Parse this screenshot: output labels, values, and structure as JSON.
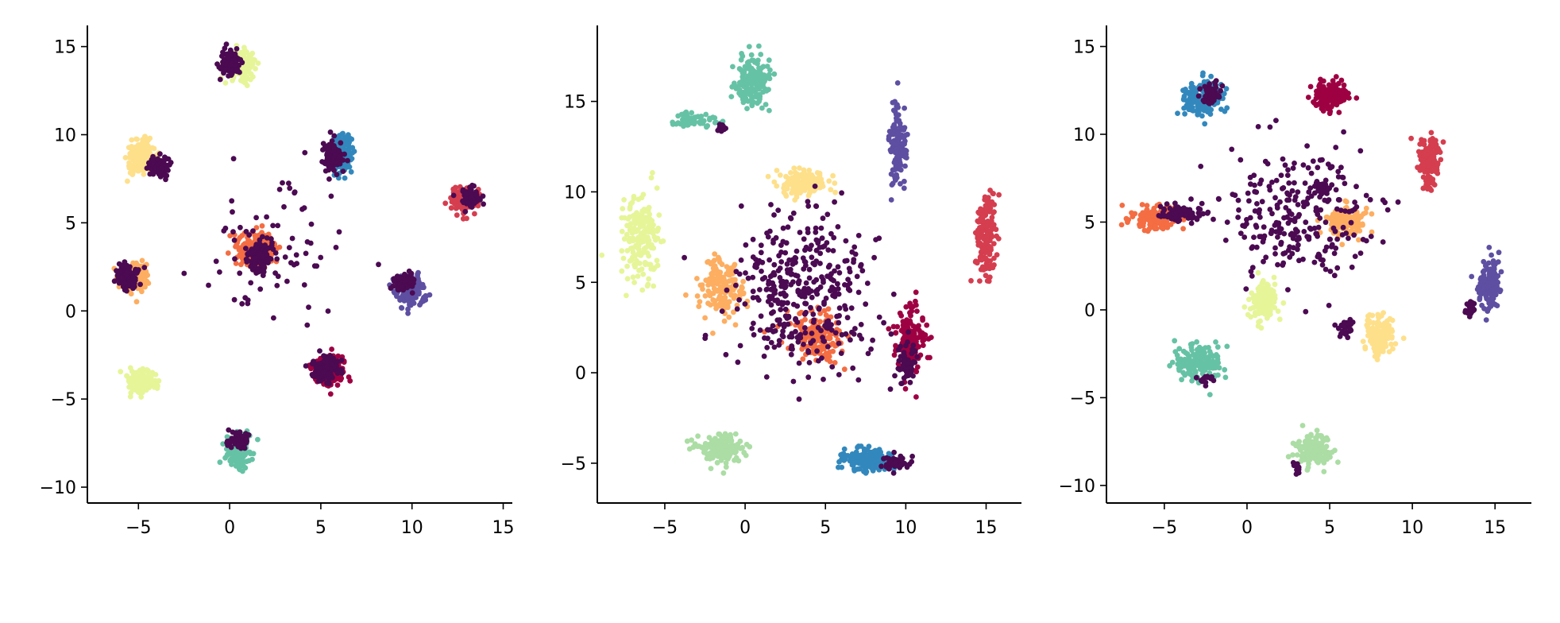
{
  "figure": {
    "background": "#ffffff"
  },
  "palette": {
    "overlay": "#4b0a52",
    "spectral": [
      "#9e0142",
      "#d53e4f",
      "#f46d43",
      "#fdae61",
      "#fee08b",
      "#e6f598",
      "#abdda4",
      "#66c2a5",
      "#3288bd",
      "#5e4fa2"
    ]
  },
  "chart_data": [
    {
      "type": "scatter",
      "title": "",
      "xlabel": "",
      "ylabel": "",
      "xlim": [
        -7.8,
        15.5
      ],
      "ylim": [
        -10.9,
        16.2
      ],
      "xticks": [
        -5,
        0,
        5,
        10,
        15
      ],
      "yticks": [
        -10,
        -5,
        0,
        5,
        10,
        15
      ],
      "xtick_labels": [
        "−5",
        "0",
        "5",
        "10",
        "15"
      ],
      "ytick_labels": [
        "−10",
        "−5",
        "0",
        "5",
        "10",
        "15"
      ],
      "grid": false,
      "clusters": [
        {
          "color": "#e6f598",
          "cx": 0.6,
          "cy": 14.0,
          "sx": 0.75,
          "sy": 0.7,
          "n": 170
        },
        {
          "color": "#fee08b",
          "cx": -4.8,
          "cy": 8.7,
          "sx": 0.75,
          "sy": 0.85,
          "n": 160
        },
        {
          "color": "#3288bd",
          "cx": 6.2,
          "cy": 8.9,
          "sx": 0.45,
          "sy": 0.95,
          "n": 150
        },
        {
          "color": "#d53e4f",
          "cx": 12.8,
          "cy": 6.3,
          "sx": 0.7,
          "sy": 0.65,
          "n": 140
        },
        {
          "color": "#fdae61",
          "cx": -5.2,
          "cy": 2.0,
          "sx": 0.7,
          "sy": 0.8,
          "n": 150
        },
        {
          "color": "#f46d43",
          "cx": 1.5,
          "cy": 3.5,
          "sx": 0.9,
          "sy": 0.9,
          "n": 190
        },
        {
          "color": "#5e4fa2",
          "cx": 9.9,
          "cy": 1.1,
          "sx": 0.75,
          "sy": 0.75,
          "n": 150
        },
        {
          "color": "#9e0142",
          "cx": 5.4,
          "cy": -3.3,
          "sx": 0.9,
          "sy": 0.8,
          "n": 170
        },
        {
          "color": "#e6f598",
          "cx": -4.8,
          "cy": -4.0,
          "sx": 0.8,
          "sy": 0.6,
          "n": 150
        },
        {
          "color": "#66c2a5",
          "cx": 0.5,
          "cy": -8.0,
          "sx": 0.6,
          "sy": 0.9,
          "n": 160
        }
      ],
      "overlay": [
        {
          "cx": 0.0,
          "cy": 14.1,
          "sx": 0.5,
          "sy": 0.65,
          "n": 110
        },
        {
          "cx": -3.9,
          "cy": 8.2,
          "sx": 0.5,
          "sy": 0.5,
          "n": 90
        },
        {
          "cx": 5.6,
          "cy": 8.8,
          "sx": 0.45,
          "sy": 0.75,
          "n": 100
        },
        {
          "cx": 13.2,
          "cy": 6.4,
          "sx": 0.45,
          "sy": 0.55,
          "n": 70
        },
        {
          "cx": -5.6,
          "cy": 2.0,
          "sx": 0.55,
          "sy": 0.6,
          "n": 110
        },
        {
          "cx": 1.6,
          "cy": 3.0,
          "sx": 0.55,
          "sy": 0.8,
          "n": 130
        },
        {
          "cx": 9.6,
          "cy": 1.6,
          "sx": 0.5,
          "sy": 0.4,
          "n": 100
        },
        {
          "cx": 5.2,
          "cy": -3.3,
          "sx": 0.7,
          "sy": 0.6,
          "n": 120
        },
        {
          "cx": 0.5,
          "cy": -7.3,
          "sx": 0.5,
          "sy": 0.5,
          "n": 60
        },
        {
          "cx": 2.5,
          "cy": 3.5,
          "sx": 3.5,
          "sy": 4.0,
          "n": 80
        }
      ]
    },
    {
      "type": "scatter",
      "title": "",
      "xlabel": "",
      "ylabel": "",
      "xlim": [
        -9.2,
        17.2
      ],
      "ylim": [
        -7.2,
        19.2
      ],
      "xticks": [
        -5,
        0,
        5,
        10,
        15
      ],
      "yticks": [
        -5,
        0,
        5,
        10,
        15
      ],
      "xtick_labels": [
        "−5",
        "0",
        "5",
        "10",
        "15"
      ],
      "ytick_labels": [
        "−5",
        "0",
        "5",
        "10",
        "15"
      ],
      "grid": false,
      "clusters": [
        {
          "color": "#66c2a5",
          "cx": 0.5,
          "cy": 16.0,
          "sx": 1.0,
          "sy": 1.4,
          "n": 160
        },
        {
          "color": "#66c2a5",
          "cx": -3.0,
          "cy": 14.0,
          "sx": 1.2,
          "sy": 0.4,
          "n": 60
        },
        {
          "color": "#5e4fa2",
          "cx": 9.5,
          "cy": 12.5,
          "sx": 0.45,
          "sy": 2.0,
          "n": 140
        },
        {
          "color": "#d53e4f",
          "cx": 15.0,
          "cy": 7.5,
          "sx": 0.6,
          "sy": 2.2,
          "n": 170
        },
        {
          "color": "#e6f598",
          "cx": -6.5,
          "cy": 7.5,
          "sx": 1.0,
          "sy": 2.0,
          "n": 190
        },
        {
          "color": "#fee08b",
          "cx": 3.5,
          "cy": 10.5,
          "sx": 1.5,
          "sy": 0.6,
          "n": 140
        },
        {
          "color": "#fdae61",
          "cx": -1.5,
          "cy": 4.5,
          "sx": 1.2,
          "sy": 1.5,
          "n": 160
        },
        {
          "color": "#f46d43",
          "cx": 4.5,
          "cy": 2.0,
          "sx": 1.5,
          "sy": 1.2,
          "n": 150
        },
        {
          "color": "#9e0142",
          "cx": 10.3,
          "cy": 2.0,
          "sx": 0.8,
          "sy": 1.8,
          "n": 170
        },
        {
          "color": "#abdda4",
          "cx": -1.5,
          "cy": -4.2,
          "sx": 1.5,
          "sy": 0.8,
          "n": 140
        },
        {
          "color": "#3288bd",
          "cx": 7.5,
          "cy": -4.8,
          "sx": 1.5,
          "sy": 0.6,
          "n": 170
        }
      ],
      "overlay": [
        {
          "cx": 3.5,
          "cy": 4.5,
          "sx": 3.8,
          "sy": 4.2,
          "n": 380
        },
        {
          "cx": 10.0,
          "cy": 0.5,
          "sx": 0.6,
          "sy": 1.2,
          "n": 60
        },
        {
          "cx": 9.5,
          "cy": -5.0,
          "sx": 0.8,
          "sy": 0.4,
          "n": 40
        },
        {
          "cx": -1.5,
          "cy": 13.5,
          "sx": 0.3,
          "sy": 0.3,
          "n": 15
        }
      ]
    },
    {
      "type": "scatter",
      "title": "",
      "xlabel": "",
      "ylabel": "",
      "xlim": [
        -8.5,
        17.2
      ],
      "ylim": [
        -11.0,
        16.2
      ],
      "xticks": [
        -5,
        0,
        5,
        10,
        15
      ],
      "yticks": [
        -10,
        -5,
        0,
        5,
        10,
        15
      ],
      "xtick_labels": [
        "−5",
        "0",
        "5",
        "10",
        "15"
      ],
      "ytick_labels": [
        "−10",
        "−5",
        "0",
        "5",
        "10",
        "15"
      ],
      "grid": false,
      "clusters": [
        {
          "color": "#3288bd",
          "cx": -2.8,
          "cy": 12.0,
          "sx": 1.0,
          "sy": 0.9,
          "n": 160
        },
        {
          "color": "#9e0142",
          "cx": 5.0,
          "cy": 12.2,
          "sx": 1.0,
          "sy": 0.8,
          "n": 160
        },
        {
          "color": "#d53e4f",
          "cx": 11.0,
          "cy": 8.5,
          "sx": 0.6,
          "sy": 1.3,
          "n": 150
        },
        {
          "color": "#f46d43",
          "cx": -5.5,
          "cy": 5.3,
          "sx": 1.5,
          "sy": 0.6,
          "n": 150
        },
        {
          "color": "#fdae61",
          "cx": 6.0,
          "cy": 5.0,
          "sx": 1.2,
          "sy": 0.8,
          "n": 150
        },
        {
          "color": "#e6f598",
          "cx": 1.0,
          "cy": 0.5,
          "sx": 0.8,
          "sy": 1.0,
          "n": 140
        },
        {
          "color": "#fee08b",
          "cx": 8.0,
          "cy": -1.5,
          "sx": 0.8,
          "sy": 1.0,
          "n": 150
        },
        {
          "color": "#5e4fa2",
          "cx": 14.7,
          "cy": 1.5,
          "sx": 0.6,
          "sy": 1.3,
          "n": 140
        },
        {
          "color": "#66c2a5",
          "cx": -3.0,
          "cy": -3.0,
          "sx": 1.4,
          "sy": 1.0,
          "n": 150
        },
        {
          "color": "#abdda4",
          "cx": 4.0,
          "cy": -8.0,
          "sx": 1.0,
          "sy": 0.8,
          "n": 140
        }
      ],
      "overlay": [
        {
          "cx": 3.0,
          "cy": 5.5,
          "sx": 3.8,
          "sy": 3.5,
          "n": 260
        },
        {
          "cx": -2.2,
          "cy": 12.3,
          "sx": 0.5,
          "sy": 0.6,
          "n": 50
        },
        {
          "cx": -4.0,
          "cy": 5.5,
          "sx": 1.2,
          "sy": 0.5,
          "n": 80
        },
        {
          "cx": 4.5,
          "cy": 6.9,
          "sx": 0.5,
          "sy": 0.3,
          "n": 40
        },
        {
          "cx": 6.0,
          "cy": -1.0,
          "sx": 0.5,
          "sy": 0.5,
          "n": 30
        },
        {
          "cx": 13.5,
          "cy": 0.0,
          "sx": 0.3,
          "sy": 0.5,
          "n": 25
        },
        {
          "cx": 3.0,
          "cy": -9.0,
          "sx": 0.3,
          "sy": 0.3,
          "n": 12
        },
        {
          "cx": -2.5,
          "cy": -4.0,
          "sx": 0.5,
          "sy": 0.3,
          "n": 15
        }
      ]
    }
  ]
}
